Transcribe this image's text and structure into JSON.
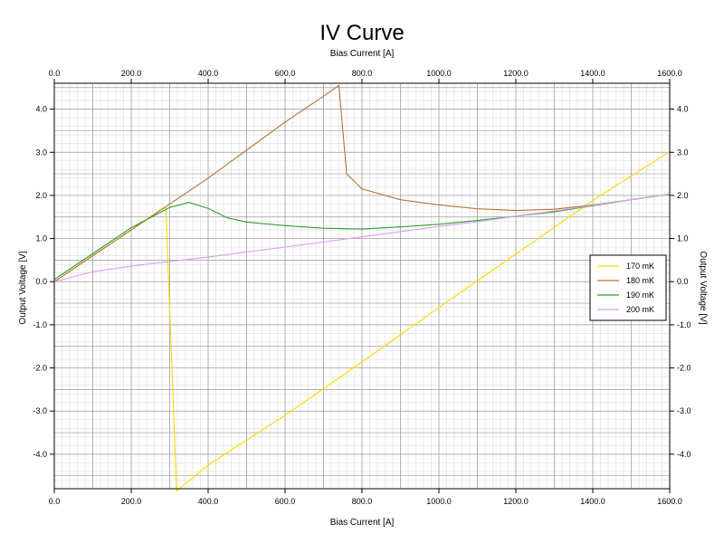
{
  "chart_data": {
    "type": "line",
    "title": "IV Curve",
    "xlabel": "Bias Current [A]",
    "ylabel": "Output Voltage [V]",
    "xlim": [
      0,
      1600
    ],
    "ylim": [
      -4.8,
      4.6
    ],
    "x_ticks": [
      0,
      200,
      400,
      600,
      800,
      1000,
      1200,
      1400,
      1600
    ],
    "x_tick_labels": [
      "0.0",
      "200.0",
      "400.0",
      "600.0",
      "800.0",
      "1000.0",
      "1200.0",
      "1400.0",
      "1600.0"
    ],
    "y_ticks": [
      -4,
      -3,
      -2,
      -1,
      0,
      1,
      2,
      3,
      4
    ],
    "y_tick_labels": [
      "-4.0",
      "-3.0",
      "-2.0",
      "-1.0",
      "0.0",
      "1.0",
      "2.0",
      "3.0",
      "4.0"
    ],
    "grid": true,
    "minor_grid": true,
    "legend_position": "right",
    "series": [
      {
        "name": "170 mK",
        "color": "#ffd700",
        "x": [
          0,
          100,
          200,
          285,
          290,
          318,
          400,
          600,
          800,
          1000,
          1200,
          1400,
          1600
        ],
        "y": [
          0.0,
          0.6,
          1.2,
          1.72,
          1.7,
          -4.85,
          -4.25,
          -3.1,
          -1.86,
          -0.6,
          0.64,
          1.88,
          3.02
        ]
      },
      {
        "name": "180 mK",
        "color": "#b87333",
        "x": [
          0,
          100,
          200,
          300,
          400,
          500,
          600,
          700,
          740,
          760,
          800,
          900,
          1000,
          1100,
          1200,
          1300,
          1400,
          1500,
          1600
        ],
        "y": [
          0.0,
          0.6,
          1.2,
          1.8,
          2.4,
          3.05,
          3.7,
          4.3,
          4.55,
          2.5,
          2.15,
          1.9,
          1.78,
          1.69,
          1.65,
          1.68,
          1.78,
          1.9,
          2.03
        ]
      },
      {
        "name": "190 mK",
        "color": "#2ca02c",
        "x": [
          0,
          100,
          200,
          300,
          350,
          400,
          450,
          500,
          600,
          700,
          800,
          900,
          1000,
          1100,
          1200,
          1300,
          1400,
          1500,
          1600
        ],
        "y": [
          0.05,
          0.65,
          1.25,
          1.72,
          1.84,
          1.7,
          1.48,
          1.38,
          1.3,
          1.24,
          1.22,
          1.27,
          1.33,
          1.42,
          1.52,
          1.62,
          1.76,
          1.9,
          2.03
        ]
      },
      {
        "name": "200 mK",
        "color": "#da9cf0",
        "x": [
          0,
          100,
          200,
          300,
          400,
          500,
          600,
          700,
          800,
          900,
          1000,
          1100,
          1200,
          1300,
          1400,
          1500,
          1600
        ],
        "y": [
          0.0,
          0.23,
          0.36,
          0.47,
          0.57,
          0.69,
          0.8,
          0.92,
          1.04,
          1.16,
          1.28,
          1.39,
          1.52,
          1.64,
          1.77,
          1.9,
          2.03
        ]
      }
    ]
  }
}
